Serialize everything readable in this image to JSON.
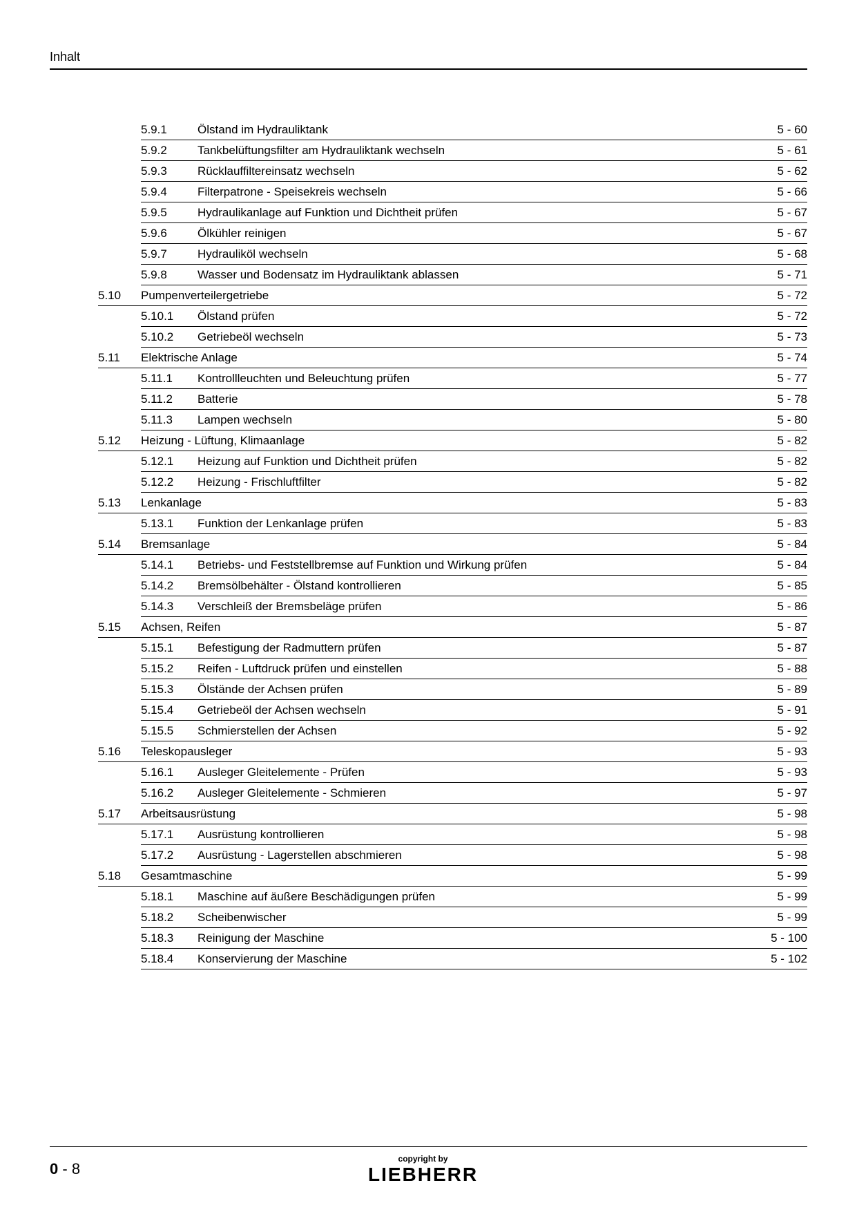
{
  "header_title": "Inhalt",
  "page_number_prefix": "0",
  "page_number_sep": " - ",
  "page_number": "8",
  "copyright_text": "copyright by",
  "logo_text": "LIEBHERR",
  "toc": [
    {
      "type": "sub",
      "num": "5.9.1",
      "title": "Ölstand im Hydrauliktank",
      "page": "5 - 60"
    },
    {
      "type": "sub",
      "num": "5.9.2",
      "title": "Tankbelüftungsfilter am Hydrauliktank wechseln",
      "page": "5 - 61"
    },
    {
      "type": "sub",
      "num": "5.9.3",
      "title": "Rücklauffiltereinsatz wechseln",
      "page": "5 - 62"
    },
    {
      "type": "sub",
      "num": "5.9.4",
      "title": "Filterpatrone - Speisekreis wechseln",
      "page": "5 - 66"
    },
    {
      "type": "sub",
      "num": "5.9.5",
      "title": "Hydraulikanlage auf Funktion und Dichtheit prüfen",
      "page": "5 - 67"
    },
    {
      "type": "sub",
      "num": "5.9.6",
      "title": "Ölkühler reinigen",
      "page": "5 - 67"
    },
    {
      "type": "sub",
      "num": "5.9.7",
      "title": "Hydrauliköl wechseln",
      "page": "5 - 68"
    },
    {
      "type": "sub",
      "num": "5.9.8",
      "title": "Wasser und Bodensatz im Hydrauliktank ablassen",
      "page": "5 - 71"
    },
    {
      "type": "section",
      "num": "5.10",
      "title": "Pumpenverteilergetriebe",
      "page": "5 - 72"
    },
    {
      "type": "sub",
      "num": "5.10.1",
      "title": "Ölstand prüfen",
      "page": "5 - 72"
    },
    {
      "type": "sub",
      "num": "5.10.2",
      "title": "Getriebeöl wechseln",
      "page": "5 - 73"
    },
    {
      "type": "section",
      "num": "5.11",
      "title": "Elektrische Anlage",
      "page": "5 - 74"
    },
    {
      "type": "sub",
      "num": "5.11.1",
      "title": "Kontrollleuchten und Beleuchtung prüfen",
      "page": "5 - 77"
    },
    {
      "type": "sub",
      "num": "5.11.2",
      "title": "Batterie",
      "page": "5 - 78"
    },
    {
      "type": "sub",
      "num": "5.11.3",
      "title": "Lampen wechseln",
      "page": "5 - 80"
    },
    {
      "type": "section",
      "num": "5.12",
      "title": "Heizung - Lüftung, Klimaanlage",
      "page": "5 - 82"
    },
    {
      "type": "sub",
      "num": "5.12.1",
      "title": "Heizung auf Funktion und Dichtheit prüfen",
      "page": "5 - 82"
    },
    {
      "type": "sub",
      "num": "5.12.2",
      "title": "Heizung - Frischluftfilter",
      "page": "5 - 82"
    },
    {
      "type": "section",
      "num": "5.13",
      "title": "Lenkanlage",
      "page": "5 - 83"
    },
    {
      "type": "sub",
      "num": "5.13.1",
      "title": "Funktion der Lenkanlage prüfen",
      "page": "5 - 83"
    },
    {
      "type": "section",
      "num": "5.14",
      "title": "Bremsanlage",
      "page": "5 - 84"
    },
    {
      "type": "sub",
      "num": "5.14.1",
      "title": "Betriebs- und Feststellbremse auf Funktion und Wirkung prüfen",
      "page": "5 - 84"
    },
    {
      "type": "sub",
      "num": "5.14.2",
      "title": "Bremsölbehälter - Ölstand kontrollieren",
      "page": "5 - 85"
    },
    {
      "type": "sub",
      "num": "5.14.3",
      "title": "Verschleiß der Bremsbeläge prüfen",
      "page": "5 - 86"
    },
    {
      "type": "section",
      "num": "5.15",
      "title": "Achsen, Reifen",
      "page": "5 - 87"
    },
    {
      "type": "sub",
      "num": "5.15.1",
      "title": "Befestigung der Radmuttern prüfen",
      "page": "5 - 87"
    },
    {
      "type": "sub",
      "num": "5.15.2",
      "title": "Reifen - Luftdruck prüfen und einstellen",
      "page": "5 - 88"
    },
    {
      "type": "sub",
      "num": "5.15.3",
      "title": "Ölstände der Achsen prüfen",
      "page": "5 - 89"
    },
    {
      "type": "sub",
      "num": "5.15.4",
      "title": "Getriebeöl der Achsen wechseln",
      "page": "5 - 91"
    },
    {
      "type": "sub",
      "num": "5.15.5",
      "title": "Schmierstellen der Achsen",
      "page": "5 - 92"
    },
    {
      "type": "section",
      "num": "5.16",
      "title": "Teleskopausleger",
      "page": "5 - 93"
    },
    {
      "type": "sub",
      "num": "5.16.1",
      "title": "Ausleger Gleitelemente - Prüfen",
      "page": "5 - 93"
    },
    {
      "type": "sub",
      "num": "5.16.2",
      "title": "Ausleger Gleitelemente - Schmieren",
      "page": "5 - 97"
    },
    {
      "type": "section",
      "num": "5.17",
      "title": "Arbeitsausrüstung",
      "page": "5 - 98"
    },
    {
      "type": "sub",
      "num": "5.17.1",
      "title": "Ausrüstung kontrollieren",
      "page": "5 - 98"
    },
    {
      "type": "sub",
      "num": "5.17.2",
      "title": "Ausrüstung - Lagerstellen abschmieren",
      "page": "5 - 98"
    },
    {
      "type": "section",
      "num": "5.18",
      "title": "Gesamtmaschine",
      "page": "5 - 99"
    },
    {
      "type": "sub",
      "num": "5.18.1",
      "title": "Maschine auf äußere Beschädigungen prüfen",
      "page": "5 - 99"
    },
    {
      "type": "sub",
      "num": "5.18.2",
      "title": "Scheibenwischer",
      "page": "5 - 99"
    },
    {
      "type": "sub",
      "num": "5.18.3",
      "title": "Reinigung der Maschine",
      "page": "5 - 100"
    },
    {
      "type": "sub",
      "num": "5.18.4",
      "title": "Konservierung der Maschine",
      "page": "5 - 102"
    }
  ]
}
